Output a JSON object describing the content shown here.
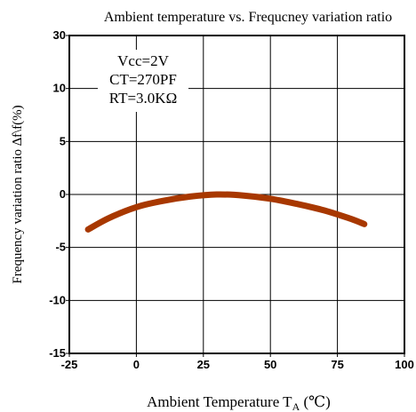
{
  "chart_data": {
    "type": "line",
    "title": "Ambient temperature vs. Frequcney variation ratio",
    "xlabel_main": "Ambient Temperature T",
    "xlabel_sub": "A",
    "xlabel_unit": " (℃)",
    "ylabel": "Frequency variation ratio ∆f\\f(%)",
    "xlim": [
      -25,
      100
    ],
    "ylim": [
      -15,
      30
    ],
    "xticks": [
      -25,
      0,
      25,
      50,
      75,
      100
    ],
    "yticks": [
      30,
      10,
      5,
      0,
      -5,
      -10,
      -15
    ],
    "xtick_labels": [
      "-25",
      "0",
      "25",
      "50",
      "75",
      "100"
    ],
    "ytick_labels": [
      "30",
      "10",
      "5",
      "0",
      "-5",
      "-10",
      "-15"
    ],
    "grid": true,
    "annotation": [
      "Vcc=2V",
      "CT=270PF",
      "RT=3.0KΩ"
    ],
    "series": [
      {
        "color": "#a83800",
        "x": [
          -18,
          -10,
          0,
          10,
          20,
          30,
          40,
          50,
          60,
          70,
          80,
          85
        ],
        "y": [
          -3.3,
          -2.2,
          -1.2,
          -0.6,
          -0.2,
          0.0,
          -0.1,
          -0.4,
          -0.9,
          -1.5,
          -2.3,
          -2.8
        ]
      }
    ]
  }
}
